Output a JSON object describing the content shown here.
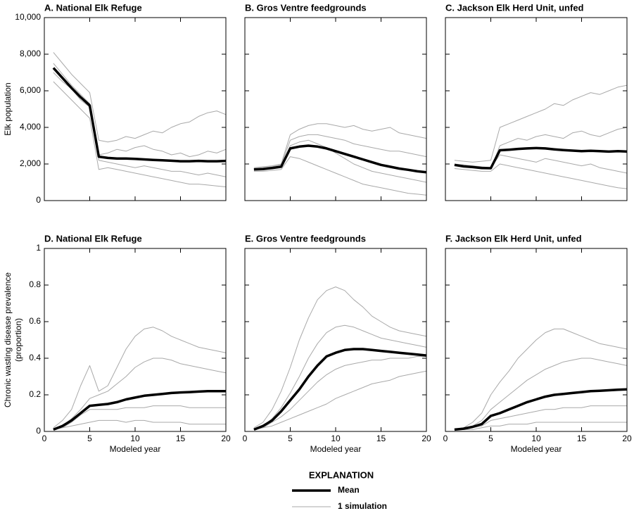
{
  "chart_data": [
    {
      "type": "line",
      "title": "A. National Elk Refuge",
      "ylabel": "Elk population",
      "x": [
        1,
        2,
        3,
        4,
        5,
        6,
        7,
        8,
        9,
        10,
        11,
        12,
        13,
        14,
        15,
        16,
        17,
        18,
        19,
        20
      ],
      "xlim": [
        0,
        20
      ],
      "xticks": [
        0,
        5,
        10,
        15,
        20
      ],
      "ylim": [
        0,
        10000
      ],
      "yticks": [
        0,
        {
          "value": 2000,
          "label": "2,000"
        },
        {
          "value": 4000,
          "label": "4,000"
        },
        {
          "value": 6000,
          "label": "6,000"
        },
        {
          "value": 8000,
          "label": "8,000"
        },
        {
          "value": 10000,
          "label": "10,000"
        }
      ],
      "series": [
        {
          "name": "Mean",
          "color": "#000000",
          "values": [
            7250,
            6700,
            6150,
            5650,
            5200,
            2400,
            2330,
            2300,
            2300,
            2280,
            2250,
            2220,
            2200,
            2180,
            2150,
            2150,
            2170,
            2150,
            2150,
            2170
          ]
        }
      ],
      "simulations": [
        [
          8100,
          7500,
          6900,
          6400,
          5900,
          3300,
          3200,
          3300,
          3500,
          3400,
          3600,
          3800,
          3700,
          4000,
          4200,
          4300,
          4600,
          4800,
          4900,
          4700
        ],
        [
          6500,
          6000,
          5500,
          5000,
          4500,
          1700,
          1800,
          1700,
          1600,
          1500,
          1400,
          1300,
          1200,
          1100,
          1000,
          900,
          900,
          850,
          800,
          750
        ],
        [
          7000,
          6500,
          6100,
          5500,
          5100,
          2500,
          2600,
          2800,
          2700,
          2900,
          3000,
          2800,
          2700,
          2500,
          2600,
          2400,
          2500,
          2700,
          2600,
          2800
        ],
        [
          7500,
          6900,
          6300,
          5800,
          5300,
          2200,
          2100,
          2000,
          1900,
          1800,
          1900,
          1800,
          1700,
          1600,
          1600,
          1500,
          1400,
          1500,
          1400,
          1300
        ]
      ]
    },
    {
      "type": "line",
      "title": "B. Gros Ventre feedgrounds",
      "x": [
        1,
        2,
        3,
        4,
        5,
        6,
        7,
        8,
        9,
        10,
        11,
        12,
        13,
        14,
        15,
        16,
        17,
        18,
        19,
        20
      ],
      "xlim": [
        0,
        20
      ],
      "xticks": [
        0,
        5,
        10,
        15,
        20
      ],
      "ylim": [
        0,
        10000
      ],
      "yticks": [
        0,
        2000,
        4000,
        6000,
        8000,
        10000
      ],
      "series": [
        {
          "name": "Mean",
          "color": "#000000",
          "values": [
            1700,
            1720,
            1780,
            1850,
            2850,
            2950,
            3000,
            2950,
            2850,
            2700,
            2550,
            2400,
            2250,
            2100,
            1950,
            1850,
            1750,
            1680,
            1600,
            1550
          ]
        }
      ],
      "simulations": [
        [
          1800,
          1850,
          1900,
          2000,
          3600,
          3900,
          4100,
          4200,
          4200,
          4100,
          4000,
          4100,
          3900,
          3800,
          3900,
          4000,
          3700,
          3600,
          3500,
          3400
        ],
        [
          1600,
          1600,
          1650,
          1700,
          2400,
          2300,
          2100,
          1900,
          1700,
          1500,
          1300,
          1100,
          900,
          800,
          700,
          600,
          500,
          400,
          350,
          300
        ],
        [
          1700,
          1750,
          1800,
          1900,
          3000,
          3200,
          3300,
          3100,
          2900,
          2600,
          2300,
          2000,
          1800,
          1600,
          1500,
          1400,
          1300,
          1200,
          1100,
          1000
        ],
        [
          1750,
          1800,
          1850,
          1950,
          3300,
          3500,
          3600,
          3600,
          3500,
          3400,
          3300,
          3100,
          3000,
          2900,
          2800,
          2700,
          2700,
          2600,
          2500,
          2400
        ]
      ]
    },
    {
      "type": "line",
      "title": "C. Jackson Elk Herd Unit, unfed",
      "x": [
        1,
        2,
        3,
        4,
        5,
        6,
        7,
        8,
        9,
        10,
        11,
        12,
        13,
        14,
        15,
        16,
        17,
        18,
        19,
        20
      ],
      "xlim": [
        0,
        20
      ],
      "xticks": [
        0,
        5,
        10,
        15,
        20
      ],
      "ylim": [
        0,
        10000
      ],
      "yticks": [
        0,
        2000,
        4000,
        6000,
        8000,
        10000
      ],
      "series": [
        {
          "name": "Mean",
          "color": "#000000",
          "values": [
            1950,
            1870,
            1830,
            1780,
            1770,
            2750,
            2780,
            2820,
            2850,
            2870,
            2850,
            2800,
            2760,
            2730,
            2700,
            2720,
            2700,
            2680,
            2700,
            2680
          ]
        }
      ],
      "simulations": [
        [
          2200,
          2150,
          2100,
          2150,
          2200,
          4000,
          4200,
          4400,
          4600,
          4800,
          5000,
          5300,
          5200,
          5500,
          5700,
          5900,
          5800,
          6000,
          6200,
          6300
        ],
        [
          1750,
          1700,
          1650,
          1600,
          1600,
          2000,
          1900,
          1800,
          1700,
          1600,
          1500,
          1400,
          1300,
          1200,
          1100,
          1000,
          900,
          800,
          700,
          650
        ],
        [
          1900,
          1850,
          1800,
          1750,
          1750,
          3000,
          3200,
          3400,
          3300,
          3500,
          3600,
          3500,
          3400,
          3700,
          3800,
          3600,
          3500,
          3700,
          3900,
          4000
        ],
        [
          2000,
          1950,
          1900,
          1850,
          1800,
          2500,
          2400,
          2300,
          2200,
          2100,
          2300,
          2200,
          2100,
          2000,
          1900,
          2000,
          1800,
          1700,
          1600,
          1500
        ]
      ]
    },
    {
      "type": "line",
      "title": "D. National Elk Refuge",
      "xlabel": "Modeled year",
      "ylabel": [
        "Chronic wasting disease prevalence",
        "(proportion)"
      ],
      "x": [
        1,
        2,
        3,
        4,
        5,
        6,
        7,
        8,
        9,
        10,
        11,
        12,
        13,
        14,
        15,
        16,
        17,
        18,
        19,
        20
      ],
      "xlim": [
        0,
        20
      ],
      "xticks": [
        0,
        5,
        10,
        15,
        20
      ],
      "ylim": [
        0,
        1
      ],
      "yticks": [
        0,
        0.2,
        0.4,
        0.6,
        0.8,
        1
      ],
      "series": [
        {
          "name": "Mean",
          "color": "#000000",
          "values": [
            0.01,
            0.03,
            0.06,
            0.1,
            0.14,
            0.145,
            0.15,
            0.16,
            0.175,
            0.185,
            0.195,
            0.2,
            0.205,
            0.21,
            0.213,
            0.215,
            0.218,
            0.22,
            0.22,
            0.22
          ]
        }
      ],
      "simulations": [
        [
          0.02,
          0.06,
          0.12,
          0.25,
          0.36,
          0.22,
          0.25,
          0.35,
          0.45,
          0.52,
          0.56,
          0.57,
          0.55,
          0.52,
          0.5,
          0.48,
          0.46,
          0.45,
          0.44,
          0.43
        ],
        [
          0.01,
          0.02,
          0.03,
          0.04,
          0.05,
          0.06,
          0.06,
          0.06,
          0.05,
          0.06,
          0.06,
          0.05,
          0.05,
          0.05,
          0.05,
          0.04,
          0.04,
          0.04,
          0.04,
          0.04
        ],
        [
          0.01,
          0.03,
          0.07,
          0.12,
          0.18,
          0.2,
          0.22,
          0.26,
          0.3,
          0.35,
          0.38,
          0.4,
          0.4,
          0.39,
          0.37,
          0.36,
          0.35,
          0.34,
          0.33,
          0.32
        ],
        [
          0.01,
          0.02,
          0.05,
          0.09,
          0.12,
          0.12,
          0.12,
          0.12,
          0.13,
          0.13,
          0.13,
          0.14,
          0.14,
          0.14,
          0.14,
          0.13,
          0.13,
          0.13,
          0.13,
          0.13
        ]
      ]
    },
    {
      "type": "line",
      "title": "E. Gros Ventre feedgrounds",
      "xlabel": "Modeled year",
      "x": [
        1,
        2,
        3,
        4,
        5,
        6,
        7,
        8,
        9,
        10,
        11,
        12,
        13,
        14,
        15,
        16,
        17,
        18,
        19,
        20
      ],
      "xlim": [
        0,
        20
      ],
      "xticks": [
        0,
        5,
        10,
        15,
        20
      ],
      "ylim": [
        0,
        1
      ],
      "yticks": [
        0,
        0.2,
        0.4,
        0.6,
        0.8,
        1
      ],
      "series": [
        {
          "name": "Mean",
          "color": "#000000",
          "values": [
            0.01,
            0.03,
            0.06,
            0.11,
            0.17,
            0.23,
            0.3,
            0.36,
            0.41,
            0.43,
            0.445,
            0.45,
            0.45,
            0.445,
            0.44,
            0.435,
            0.43,
            0.425,
            0.42,
            0.415
          ]
        }
      ],
      "simulations": [
        [
          0.02,
          0.05,
          0.12,
          0.22,
          0.35,
          0.5,
          0.62,
          0.72,
          0.77,
          0.79,
          0.77,
          0.72,
          0.68,
          0.63,
          0.6,
          0.57,
          0.55,
          0.54,
          0.53,
          0.52
        ],
        [
          0.01,
          0.02,
          0.03,
          0.05,
          0.07,
          0.09,
          0.11,
          0.13,
          0.15,
          0.18,
          0.2,
          0.22,
          0.24,
          0.26,
          0.27,
          0.28,
          0.3,
          0.31,
          0.32,
          0.33
        ],
        [
          0.01,
          0.03,
          0.07,
          0.13,
          0.21,
          0.3,
          0.4,
          0.48,
          0.54,
          0.57,
          0.58,
          0.57,
          0.55,
          0.53,
          0.51,
          0.5,
          0.49,
          0.48,
          0.47,
          0.46
        ],
        [
          0.01,
          0.02,
          0.05,
          0.08,
          0.12,
          0.17,
          0.22,
          0.27,
          0.31,
          0.34,
          0.36,
          0.37,
          0.38,
          0.39,
          0.39,
          0.4,
          0.4,
          0.4,
          0.41,
          0.41
        ]
      ]
    },
    {
      "type": "line",
      "title": "F. Jackson Elk Herd Unit, unfed",
      "xlabel": "Modeled year",
      "x": [
        1,
        2,
        3,
        4,
        5,
        6,
        7,
        8,
        9,
        10,
        11,
        12,
        13,
        14,
        15,
        16,
        17,
        18,
        19,
        20
      ],
      "xlim": [
        0,
        20
      ],
      "xticks": [
        0,
        5,
        10,
        15,
        20
      ],
      "ylim": [
        0,
        1
      ],
      "yticks": [
        0,
        0.2,
        0.4,
        0.6,
        0.8,
        1
      ],
      "series": [
        {
          "name": "Mean",
          "color": "#000000",
          "values": [
            0.01,
            0.015,
            0.025,
            0.04,
            0.085,
            0.1,
            0.12,
            0.14,
            0.16,
            0.175,
            0.19,
            0.2,
            0.205,
            0.21,
            0.215,
            0.22,
            0.222,
            0.225,
            0.228,
            0.23
          ]
        }
      ],
      "simulations": [
        [
          0.01,
          0.02,
          0.05,
          0.1,
          0.2,
          0.27,
          0.33,
          0.4,
          0.45,
          0.5,
          0.54,
          0.56,
          0.56,
          0.54,
          0.52,
          0.5,
          0.48,
          0.47,
          0.46,
          0.45
        ],
        [
          0.01,
          0.01,
          0.01,
          0.02,
          0.03,
          0.03,
          0.04,
          0.04,
          0.04,
          0.05,
          0.05,
          0.05,
          0.05,
          0.05,
          0.05,
          0.05,
          0.05,
          0.05,
          0.05,
          0.05
        ],
        [
          0.01,
          0.02,
          0.03,
          0.06,
          0.12,
          0.16,
          0.2,
          0.24,
          0.28,
          0.31,
          0.34,
          0.36,
          0.38,
          0.39,
          0.4,
          0.4,
          0.39,
          0.38,
          0.37,
          0.36
        ],
        [
          0.01,
          0.01,
          0.02,
          0.03,
          0.06,
          0.07,
          0.08,
          0.09,
          0.1,
          0.11,
          0.12,
          0.12,
          0.13,
          0.13,
          0.13,
          0.14,
          0.14,
          0.14,
          0.14,
          0.14
        ]
      ]
    }
  ],
  "legend": {
    "title": "EXPLANATION",
    "entries": [
      {
        "name": "Mean",
        "color": "#000000"
      },
      {
        "name": "1 simulation",
        "color": "#a9a9a9"
      }
    ]
  }
}
